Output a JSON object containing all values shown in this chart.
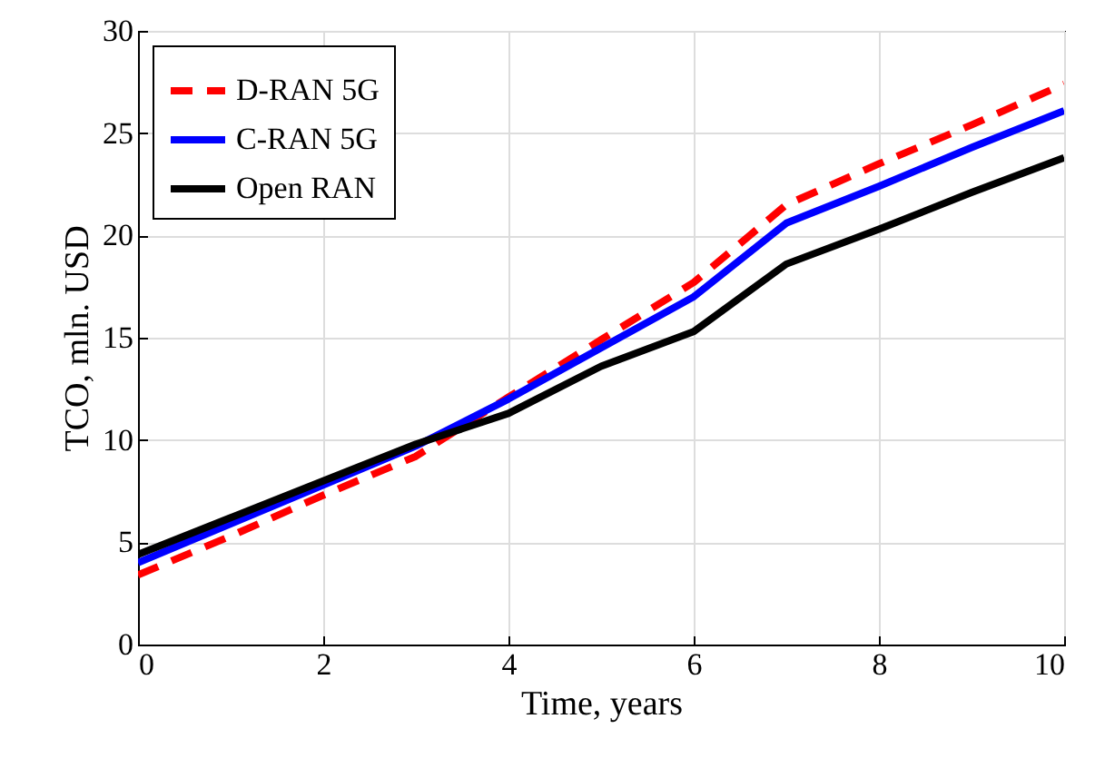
{
  "chart_data": {
    "type": "line",
    "xlabel": "Time, years",
    "ylabel": "TCO, mln. USD",
    "x": [
      0,
      1,
      2,
      3,
      4,
      5,
      6,
      7,
      8,
      9,
      10
    ],
    "series": [
      {
        "name": "D-RAN 5G",
        "color": "#ff0000",
        "line_style": "dashed",
        "values": [
          3.4,
          5.3,
          7.3,
          9.2,
          12.1,
          14.9,
          17.7,
          21.5,
          23.5,
          25.4,
          27.4
        ]
      },
      {
        "name": "C-RAN 5G",
        "color": "#0000ff",
        "line_style": "solid",
        "values": [
          4.0,
          5.9,
          7.8,
          9.7,
          12.0,
          14.5,
          17.0,
          20.6,
          22.4,
          24.3,
          26.1
        ]
      },
      {
        "name": "Open RAN",
        "color": "#000000",
        "line_style": "solid",
        "values": [
          4.4,
          6.2,
          8.0,
          9.8,
          11.3,
          13.6,
          15.3,
          18.6,
          20.3,
          22.1,
          23.8
        ]
      }
    ],
    "xlim": [
      0,
      10
    ],
    "xticks": [
      0,
      2,
      4,
      6,
      8,
      10
    ],
    "ylim": [
      0,
      30
    ],
    "yticks": [
      0,
      5,
      10,
      15,
      20,
      25,
      30
    ],
    "grid": true,
    "legend": "top left",
    "marker": "none"
  }
}
